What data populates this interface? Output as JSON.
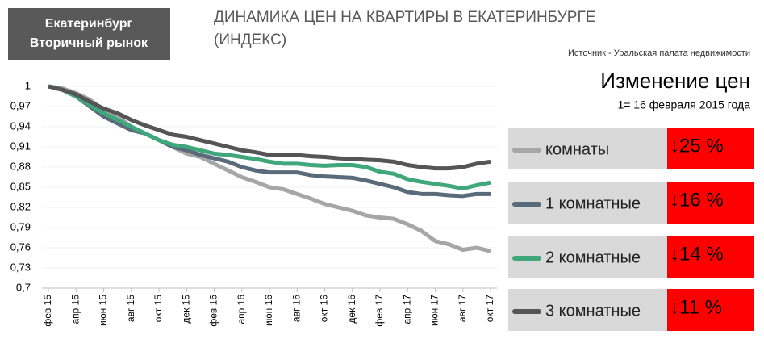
{
  "header": {
    "line1": "Екатеринбург",
    "line2": "Вторичный рынок"
  },
  "chart_data": {
    "type": "line",
    "title": "ДИНАМИКА ЦЕН НА КВАРТИРЫ В ЕКАТЕРИНБУРГЕ (ИНДЕКС)",
    "source": "Источник - Уральская палата недвижимости",
    "panel_title": "Изменение цен",
    "panel_subtitle": "1= 16 февраля 2015 года",
    "categories": [
      "фев 15",
      null,
      "апр 15",
      null,
      "июн 15",
      null,
      "авг 15",
      null,
      "окт 15",
      null,
      "дек 15",
      null,
      "фев 16",
      null,
      "апр 16",
      null,
      "июн 16",
      null,
      "авг 16",
      null,
      "окт 16",
      null,
      "дек 16",
      null,
      "фев 17",
      null,
      "апр 17",
      null,
      "июн 17",
      null,
      "авг 17",
      null,
      "окт 17"
    ],
    "ylim": [
      0.7,
      1
    ],
    "yticks": [
      {
        "value": 0.7,
        "label": "0,7"
      },
      {
        "value": 0.73,
        "label": "0,73"
      },
      {
        "value": 0.76,
        "label": "0,76"
      },
      {
        "value": 0.79,
        "label": "0,79"
      },
      {
        "value": 0.82,
        "label": "0,82"
      },
      {
        "value": 0.85,
        "label": "0,85"
      },
      {
        "value": 0.88,
        "label": "0,88"
      },
      {
        "value": 0.91,
        "label": "0,91"
      },
      {
        "value": 0.94,
        "label": "0,94"
      },
      {
        "value": 0.97,
        "label": "0,97"
      },
      1
    ],
    "series": [
      {
        "name": "комнаты",
        "color": "#a6a6a6",
        "change_label": "↓25 %",
        "values": [
          1.0,
          0.997,
          0.99,
          0.98,
          0.965,
          0.955,
          0.94,
          0.93,
          0.92,
          0.91,
          0.9,
          0.895,
          0.885,
          0.875,
          0.865,
          0.858,
          0.85,
          0.847,
          0.84,
          0.833,
          0.825,
          0.82,
          0.815,
          0.808,
          0.805,
          0.803,
          0.795,
          0.785,
          0.77,
          0.765,
          0.757,
          0.76,
          0.755
        ]
      },
      {
        "name": "1 комнатные",
        "color": "#596a7a",
        "change_label": "↓16 %",
        "values": [
          1.0,
          0.995,
          0.985,
          0.97,
          0.955,
          0.945,
          0.935,
          0.93,
          0.92,
          0.91,
          0.905,
          0.898,
          0.893,
          0.888,
          0.88,
          0.875,
          0.872,
          0.872,
          0.872,
          0.868,
          0.866,
          0.865,
          0.864,
          0.86,
          0.855,
          0.85,
          0.843,
          0.84,
          0.84,
          0.838,
          0.837,
          0.84,
          0.84
        ]
      },
      {
        "name": "2 комнатные",
        "color": "#3fa77a",
        "change_label": "↓14 %",
        "values": [
          1.0,
          0.995,
          0.985,
          0.972,
          0.96,
          0.95,
          0.94,
          0.93,
          0.92,
          0.913,
          0.91,
          0.905,
          0.9,
          0.898,
          0.895,
          0.892,
          0.888,
          0.885,
          0.885,
          0.883,
          0.882,
          0.883,
          0.883,
          0.88,
          0.873,
          0.87,
          0.862,
          0.858,
          0.855,
          0.852,
          0.848,
          0.853,
          0.857
        ]
      },
      {
        "name": "3 комнатные",
        "color": "#555555",
        "change_label": "↓11 %",
        "values": [
          1.0,
          0.995,
          0.988,
          0.977,
          0.967,
          0.96,
          0.95,
          0.942,
          0.935,
          0.928,
          0.925,
          0.92,
          0.915,
          0.91,
          0.905,
          0.902,
          0.898,
          0.898,
          0.898,
          0.896,
          0.895,
          0.893,
          0.892,
          0.891,
          0.89,
          0.888,
          0.883,
          0.88,
          0.878,
          0.878,
          0.88,
          0.885,
          0.888
        ]
      }
    ]
  }
}
